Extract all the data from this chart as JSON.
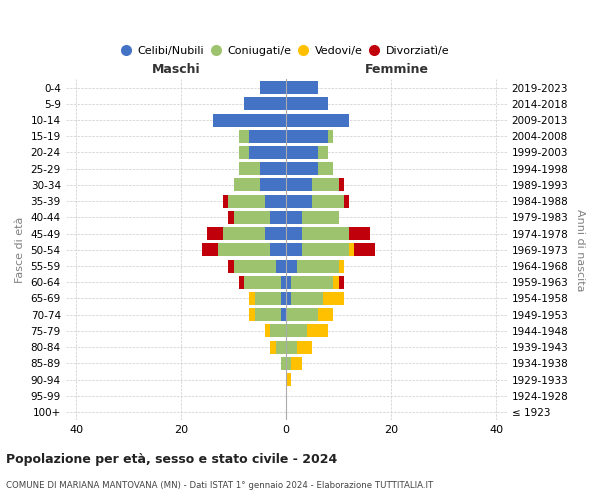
{
  "age_groups": [
    "100+",
    "95-99",
    "90-94",
    "85-89",
    "80-84",
    "75-79",
    "70-74",
    "65-69",
    "60-64",
    "55-59",
    "50-54",
    "45-49",
    "40-44",
    "35-39",
    "30-34",
    "25-29",
    "20-24",
    "15-19",
    "10-14",
    "5-9",
    "0-4"
  ],
  "birth_years": [
    "≤ 1923",
    "1924-1928",
    "1929-1933",
    "1934-1938",
    "1939-1943",
    "1944-1948",
    "1949-1953",
    "1954-1958",
    "1959-1963",
    "1964-1968",
    "1969-1973",
    "1974-1978",
    "1979-1983",
    "1984-1988",
    "1989-1993",
    "1994-1998",
    "1999-2003",
    "2004-2008",
    "2009-2013",
    "2014-2018",
    "2019-2023"
  ],
  "colors": {
    "celibi": "#4472c4",
    "coniugati": "#9dc36f",
    "vedovi": "#ffc000",
    "divorziati": "#c0000b"
  },
  "males": {
    "celibi": [
      0,
      0,
      0,
      0,
      0,
      0,
      1,
      1,
      1,
      2,
      3,
      4,
      3,
      4,
      5,
      5,
      7,
      7,
      14,
      8,
      5
    ],
    "coniugati": [
      0,
      0,
      0,
      1,
      2,
      3,
      5,
      5,
      7,
      8,
      10,
      8,
      7,
      7,
      5,
      4,
      2,
      2,
      0,
      0,
      0
    ],
    "vedovi": [
      0,
      0,
      0,
      0,
      1,
      1,
      1,
      1,
      0,
      0,
      0,
      0,
      0,
      0,
      0,
      0,
      0,
      0,
      0,
      0,
      0
    ],
    "divorziati": [
      0,
      0,
      0,
      0,
      0,
      0,
      0,
      0,
      1,
      1,
      3,
      3,
      1,
      1,
      0,
      0,
      0,
      0,
      0,
      0,
      0
    ]
  },
  "females": {
    "celibi": [
      0,
      0,
      0,
      0,
      0,
      0,
      0,
      1,
      1,
      2,
      3,
      3,
      3,
      5,
      5,
      6,
      6,
      8,
      12,
      8,
      6
    ],
    "coniugati": [
      0,
      0,
      0,
      1,
      2,
      4,
      6,
      6,
      8,
      8,
      9,
      9,
      7,
      6,
      5,
      3,
      2,
      1,
      0,
      0,
      0
    ],
    "vedovi": [
      0,
      0,
      1,
      2,
      3,
      4,
      3,
      4,
      1,
      1,
      1,
      0,
      0,
      0,
      0,
      0,
      0,
      0,
      0,
      0,
      0
    ],
    "divorziati": [
      0,
      0,
      0,
      0,
      0,
      0,
      0,
      0,
      1,
      0,
      4,
      4,
      0,
      1,
      1,
      0,
      0,
      0,
      0,
      0,
      0
    ]
  },
  "xlim": 42,
  "title": "Popolazione per età, sesso e stato civile - 2024",
  "subtitle": "COMUNE DI MARIANA MANTOVANA (MN) - Dati ISTAT 1° gennaio 2024 - Elaborazione TUTTITALIA.IT",
  "ylabel": "Fasce di età",
  "ylabel_right": "Anni di nascita",
  "maschi_label": "Maschi",
  "femmine_label": "Femmine",
  "legend_labels": [
    "Celibi/Nubili",
    "Coniugati/e",
    "Vedovi/e",
    "Divorziatì/e"
  ],
  "bg_color": "#ffffff",
  "grid_color": "#cccccc"
}
